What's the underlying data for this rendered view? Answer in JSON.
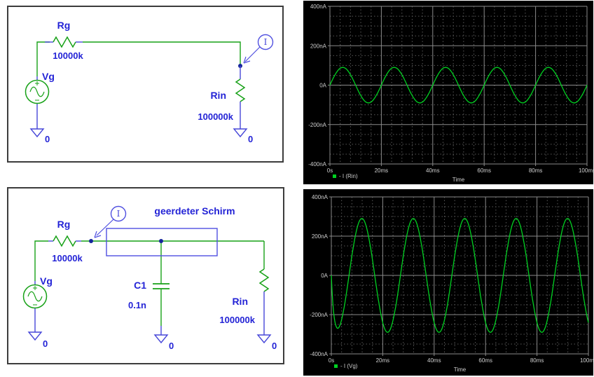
{
  "schematic1": {
    "vg_label": "Vg",
    "rg_label": "Rg",
    "rg_value": "10000k",
    "rin_label": "Rin",
    "rin_value": "100000k",
    "probe_label": "I",
    "gnd_left": "0",
    "gnd_right": "0"
  },
  "schematic2": {
    "vg_label": "Vg",
    "rg_label": "Rg",
    "rg_value": "10000k",
    "rin_label": "Rin",
    "rin_value": "100000k",
    "c1_label": "C1",
    "c1_value": "0.1n",
    "shield_label": "geerdeter Schirm",
    "probe_label": "I",
    "gnd_left": "0",
    "gnd_middle": "0",
    "gnd_right": "0"
  },
  "chart_data": [
    {
      "type": "line",
      "title": "",
      "xlabel": "Time",
      "ylabel": "",
      "x_tick_labels": [
        "0s",
        "20ms",
        "40ms",
        "60ms",
        "80ms",
        "100ms"
      ],
      "y_tick_labels": [
        "400nA",
        "200nA",
        "0A",
        "-200nA",
        "-400nA"
      ],
      "xlim_ms": [
        0,
        100
      ],
      "ylim_nA": [
        -400,
        400
      ],
      "x_major_divisions": 5,
      "x_minor_per_major": 5,
      "y_major_divisions": 4,
      "y_minor_per_major": 4,
      "grid": "major solid gray + minor dashed, black background",
      "legend_position": "bottom-left",
      "legend": [
        {
          "label": "- I (Rin)",
          "color": "#00d021"
        }
      ],
      "series": [
        {
          "name": "- I (Rin)",
          "color": "#00d021",
          "waveform": "sine",
          "amplitude_nA": 90,
          "frequency_hz": 50,
          "period_ms": 20,
          "phase_deg": 0,
          "transient_tau_ms": 0,
          "sign": 1,
          "cycles_shown": 5,
          "peak_values_nA": [
            90,
            -90
          ],
          "description": "≈90 nA 50 Hz sine, starts at 0 A rising, 5 cycles over 100 ms"
        }
      ]
    },
    {
      "type": "line",
      "title": "",
      "xlabel": "Time",
      "ylabel": "",
      "x_tick_labels": [
        "0s",
        "20ms",
        "40ms",
        "60ms",
        "80ms",
        "100ms"
      ],
      "y_tick_labels": [
        "400nA",
        "200nA",
        "0A",
        "-200nA",
        "-400nA"
      ],
      "xlim_ms": [
        0,
        100
      ],
      "ylim_nA": [
        -400,
        400
      ],
      "x_major_divisions": 5,
      "x_minor_per_major": 5,
      "y_major_divisions": 4,
      "y_minor_per_major": 4,
      "grid": "major solid gray + minor dashed, black background",
      "legend_position": "bottom-left",
      "legend": [
        {
          "label": "- I (Vg)",
          "color": "#00d021"
        }
      ],
      "series": [
        {
          "name": "- I (Vg)",
          "color": "#00d021",
          "waveform": "sine",
          "amplitude_nA": 290,
          "frequency_hz": 50,
          "period_ms": 20,
          "phase_deg": 56,
          "transient_tau_ms": 0.9,
          "sign": -1,
          "cycles_shown": 5,
          "peak_values_nA": [
            290,
            -290
          ],
          "description": "starts at 0 A dipping to ≈ -270 nA near 2.3 ms, steady peaks ≈ ±290 nA, current leads by ≈56°"
        }
      ]
    }
  ]
}
